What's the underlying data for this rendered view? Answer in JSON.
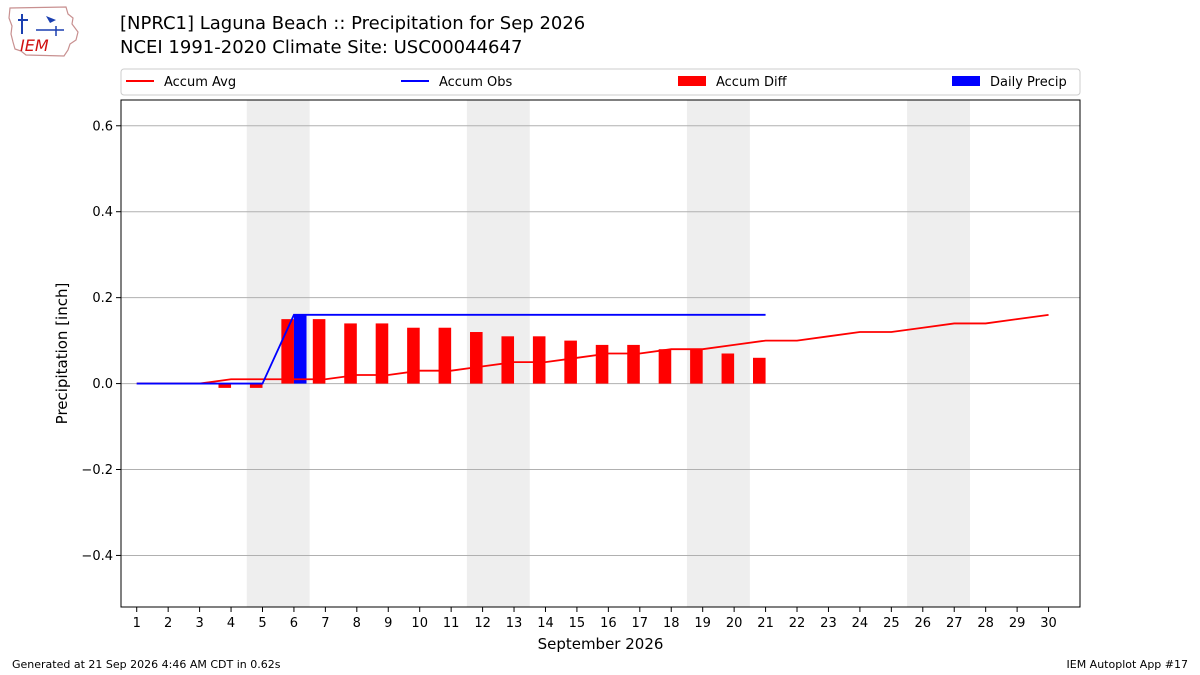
{
  "header": {
    "title_line1": "[NPRC1] Laguna Beach :: Precipitation for Sep 2026",
    "title_line2": "NCEI 1991-2020 Climate Site: USC00044647",
    "logo_text": "IEM"
  },
  "footer": {
    "generated": "Generated at 21 Sep 2026 4:46 AM CDT in 0.62s",
    "app": "IEM Autoplot App #17"
  },
  "colors": {
    "avg": "#ff0000",
    "obs": "#0000ff",
    "diff": "#ff0000",
    "daily": "#0000ff",
    "weekend": "#eeeeee",
    "grid": "#b0b0b0"
  },
  "chart_data": {
    "type": "bar",
    "xlabel": "September 2026",
    "ylabel": "Precipitation [inch]",
    "xlim": [
      0.5,
      31
    ],
    "ylim": [
      -0.52,
      0.66
    ],
    "yticks": [
      -0.4,
      -0.2,
      0.0,
      0.2,
      0.4,
      0.6
    ],
    "ytick_labels": [
      "−0.4",
      "−0.2",
      "0.0",
      "0.2",
      "0.4",
      "0.6"
    ],
    "x": [
      1,
      2,
      3,
      4,
      5,
      6,
      7,
      8,
      9,
      10,
      11,
      12,
      13,
      14,
      15,
      16,
      17,
      18,
      19,
      20,
      21,
      22,
      23,
      24,
      25,
      26,
      27,
      28,
      29,
      30
    ],
    "grid": "horizontal",
    "legend_placement": "top",
    "weekend_spans": [
      [
        4.5,
        6.5
      ],
      [
        11.5,
        13.5
      ],
      [
        18.5,
        20.5
      ],
      [
        25.5,
        27.5
      ]
    ],
    "legend": [
      "Accum Avg",
      "Accum Obs",
      "Accum Diff",
      "Daily Precip"
    ],
    "series": [
      {
        "name": "Accum Avg",
        "kind": "line",
        "x": [
          1,
          2,
          3,
          4,
          5,
          6,
          7,
          8,
          9,
          10,
          11,
          12,
          13,
          14,
          15,
          16,
          17,
          18,
          19,
          20,
          21,
          22,
          23,
          24,
          25,
          26,
          27,
          28,
          29,
          30
        ],
        "values": [
          0,
          0,
          0,
          0.01,
          0.01,
          0.01,
          0.01,
          0.02,
          0.02,
          0.03,
          0.03,
          0.04,
          0.05,
          0.05,
          0.06,
          0.07,
          0.07,
          0.08,
          0.08,
          0.09,
          0.1,
          0.1,
          0.11,
          0.12,
          0.12,
          0.13,
          0.14,
          0.14,
          0.15,
          0.16
        ]
      },
      {
        "name": "Accum Obs",
        "kind": "line",
        "x": [
          1,
          2,
          3,
          4,
          5,
          6,
          7,
          8,
          9,
          10,
          11,
          12,
          13,
          14,
          15,
          16,
          17,
          18,
          19,
          20,
          21
        ],
        "values": [
          0,
          0,
          0,
          0,
          0,
          0.16,
          0.16,
          0.16,
          0.16,
          0.16,
          0.16,
          0.16,
          0.16,
          0.16,
          0.16,
          0.16,
          0.16,
          0.16,
          0.16,
          0.16,
          0.16
        ]
      },
      {
        "name": "Accum Diff",
        "kind": "bar",
        "x": [
          1,
          2,
          3,
          4,
          5,
          6,
          7,
          8,
          9,
          10,
          11,
          12,
          13,
          14,
          15,
          16,
          17,
          18,
          19,
          20,
          21
        ],
        "values": [
          0,
          0,
          0,
          -0.01,
          -0.01,
          0.15,
          0.15,
          0.14,
          0.14,
          0.13,
          0.13,
          0.12,
          0.11,
          0.11,
          0.1,
          0.09,
          0.09,
          0.08,
          0.08,
          0.07,
          0.06
        ]
      },
      {
        "name": "Daily Precip",
        "kind": "bar",
        "x": [
          1,
          2,
          3,
          4,
          5,
          6,
          7,
          8,
          9,
          10,
          11,
          12,
          13,
          14,
          15,
          16,
          17,
          18,
          19,
          20,
          21
        ],
        "values": [
          0,
          0,
          0,
          0,
          0,
          0.16,
          0,
          0,
          0,
          0,
          0,
          0,
          0,
          0,
          0,
          0,
          0,
          0,
          0,
          0,
          0
        ]
      }
    ]
  }
}
